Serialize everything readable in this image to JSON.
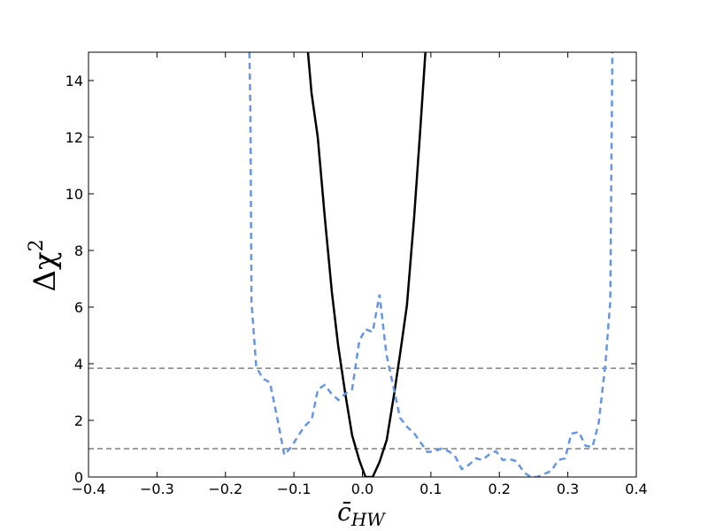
{
  "chart_data": {
    "type": "line",
    "xlabel": {
      "base": "c̄",
      "sub": "HW"
    },
    "ylabel": {
      "base": "Δχ",
      "sup": "2"
    },
    "xlim": [
      -0.4,
      0.4
    ],
    "ylim": [
      0,
      15
    ],
    "xticks": [
      {
        "value": -0.4,
        "label": "−0.4"
      },
      {
        "value": -0.3,
        "label": "−0.3"
      },
      {
        "value": -0.2,
        "label": "−0.2"
      },
      {
        "value": -0.1,
        "label": "−0.1"
      },
      {
        "value": 0,
        "label": "0.0"
      },
      0.1,
      0.2,
      0.3,
      0.4
    ],
    "yticks": [
      0,
      2,
      4,
      6,
      8,
      10,
      12,
      14
    ],
    "hlines": {
      "values": [
        1,
        3.84
      ],
      "color": "#808080",
      "dash": true
    },
    "series": [
      {
        "color": "#000000",
        "dash": false,
        "x": [
          -0.0795,
          -0.0743,
          -0.0652,
          -0.055,
          -0.0446,
          -0.0355,
          -0.025,
          -0.015,
          -0.0045,
          0.0045,
          0.015,
          0.025,
          0.0355,
          0.046,
          0.055,
          0.065,
          0.0756,
          0.0846,
          0.092
        ],
        "values": [
          15,
          13.56,
          12.0,
          9.19,
          6.53,
          4.66,
          2.94,
          1.47,
          0.59,
          0,
          0,
          0.53,
          1.31,
          2.88,
          4.34,
          6.06,
          9.19,
          12.3,
          15
        ]
      },
      {
        "color": "#6495ed",
        "dash": true,
        "x": [
          -0.165,
          -0.1635,
          -0.162,
          -0.155,
          -0.145,
          -0.135,
          -0.125,
          -0.114,
          -0.104,
          -0.085,
          -0.074,
          -0.065,
          -0.055,
          -0.045,
          -0.035,
          -0.025,
          -0.015,
          -0.0045,
          0.0045,
          0.015,
          0.025,
          0.035,
          0.046,
          0.055,
          0.065,
          0.076,
          0.085,
          0.095,
          0.105,
          0.115,
          0.126,
          0.135,
          0.145,
          0.156,
          0.166,
          0.175,
          0.186,
          0.195,
          0.205,
          0.215,
          0.225,
          0.236,
          0.246,
          0.255,
          0.265,
          0.276,
          0.286,
          0.296,
          0.305,
          0.316,
          0.326,
          0.336,
          0.345,
          0.355,
          0.362,
          0.365
        ],
        "values": [
          15,
          12.8,
          6.2,
          3.88,
          3.47,
          3.34,
          2.16,
          0.78,
          1.06,
          1.78,
          2.03,
          3.1,
          3.25,
          2.94,
          2.72,
          2.94,
          3.1,
          4.81,
          5.22,
          5.12,
          6.44,
          4.34,
          3.09,
          2.09,
          1.78,
          1.53,
          1.22,
          0.88,
          0.91,
          1.0,
          0.91,
          0.75,
          0.28,
          0.44,
          0.66,
          0.6,
          0.81,
          0.91,
          0.6,
          0.63,
          0.56,
          0.16,
          0,
          0,
          0.1,
          0.22,
          0.6,
          0.66,
          1.53,
          1.59,
          1.1,
          1.06,
          1.9,
          4.03,
          6.22,
          15
        ]
      }
    ]
  }
}
